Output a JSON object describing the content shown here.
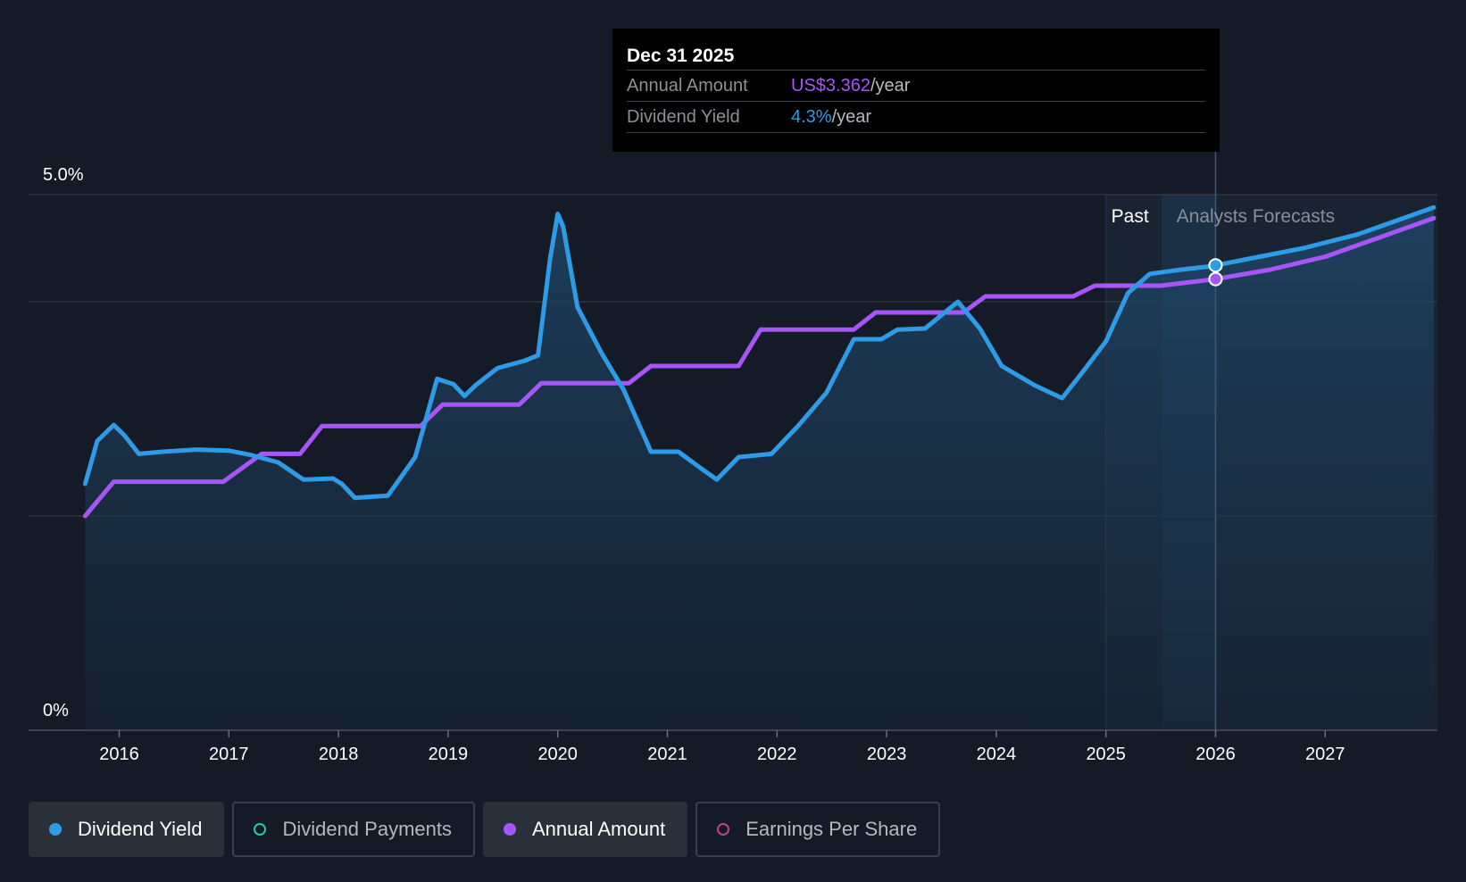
{
  "colors": {
    "yield": "#2e9be6",
    "annual": "#a855f7",
    "payments": "#26c6b0",
    "eps": "#c2447a",
    "background": "#151b26"
  },
  "tooltip": {
    "date": "Dec 31 2025",
    "rows": [
      {
        "label": "Annual Amount",
        "value": "US$3.362",
        "suffix": "/year"
      },
      {
        "label": "Dividend Yield",
        "value": "4.3%",
        "suffix": "/year"
      }
    ]
  },
  "legend": [
    {
      "label": "Dividend Yield",
      "active": true,
      "color": "#2e9be6"
    },
    {
      "label": "Dividend Payments",
      "active": false,
      "color": "#26c6b0"
    },
    {
      "label": "Annual Amount",
      "active": true,
      "color": "#a855f7"
    },
    {
      "label": "Earnings Per Share",
      "active": false,
      "color": "#c2447a"
    }
  ],
  "chart_data": {
    "type": "line",
    "ylim": [
      0,
      5.0
    ],
    "y_tick_labels": [
      "5.0%",
      "0%"
    ],
    "x_tick_labels": [
      "2016",
      "2017",
      "2018",
      "2019",
      "2020",
      "2021",
      "2022",
      "2023",
      "2024",
      "2025",
      "2026",
      "2027"
    ],
    "xlim": [
      2015.5,
      2028.0
    ],
    "grid": true,
    "region_labels": {
      "past": "Past",
      "forecast": "Analysts Forecasts"
    },
    "forecast_start": 2025.0,
    "highlight_x": 2026.0,
    "series": [
      {
        "name": "Dividend Yield",
        "area": true,
        "points": [
          [
            2015.69,
            2.3
          ],
          [
            2015.8,
            2.7
          ],
          [
            2015.95,
            2.85
          ],
          [
            2016.05,
            2.75
          ],
          [
            2016.18,
            2.58
          ],
          [
            2016.4,
            2.6
          ],
          [
            2016.7,
            2.62
          ],
          [
            2017.0,
            2.61
          ],
          [
            2017.2,
            2.57
          ],
          [
            2017.45,
            2.5
          ],
          [
            2017.68,
            2.34
          ],
          [
            2017.95,
            2.35
          ],
          [
            2018.03,
            2.3
          ],
          [
            2018.15,
            2.17
          ],
          [
            2018.45,
            2.19
          ],
          [
            2018.7,
            2.55
          ],
          [
            2018.9,
            3.28
          ],
          [
            2019.05,
            3.23
          ],
          [
            2019.15,
            3.12
          ],
          [
            2019.25,
            3.22
          ],
          [
            2019.45,
            3.38
          ],
          [
            2019.7,
            3.45
          ],
          [
            2019.82,
            3.5
          ],
          [
            2019.93,
            4.4
          ],
          [
            2020.0,
            4.82
          ],
          [
            2020.05,
            4.7
          ],
          [
            2020.18,
            3.95
          ],
          [
            2020.4,
            3.52
          ],
          [
            2020.6,
            3.18
          ],
          [
            2020.85,
            2.6
          ],
          [
            2021.1,
            2.6
          ],
          [
            2021.3,
            2.45
          ],
          [
            2021.45,
            2.34
          ],
          [
            2021.65,
            2.55
          ],
          [
            2021.95,
            2.58
          ],
          [
            2022.2,
            2.85
          ],
          [
            2022.45,
            3.15
          ],
          [
            2022.7,
            3.65
          ],
          [
            2022.95,
            3.65
          ],
          [
            2023.1,
            3.74
          ],
          [
            2023.35,
            3.75
          ],
          [
            2023.65,
            4.0
          ],
          [
            2023.85,
            3.75
          ],
          [
            2024.05,
            3.4
          ],
          [
            2024.35,
            3.22
          ],
          [
            2024.6,
            3.1
          ],
          [
            2024.8,
            3.36
          ],
          [
            2025.0,
            3.63
          ],
          [
            2025.2,
            4.08
          ],
          [
            2025.4,
            4.26
          ],
          [
            2025.69,
            4.3
          ],
          [
            2025.95,
            4.33
          ],
          [
            2026.3,
            4.4
          ],
          [
            2026.8,
            4.5
          ],
          [
            2027.3,
            4.63
          ],
          [
            2027.99,
            4.88
          ]
        ]
      },
      {
        "name": "Annual Amount",
        "area": false,
        "points": [
          [
            2015.69,
            2.0
          ],
          [
            2015.95,
            2.32
          ],
          [
            2016.95,
            2.32
          ],
          [
            2017.3,
            2.58
          ],
          [
            2017.65,
            2.58
          ],
          [
            2017.85,
            2.84
          ],
          [
            2018.75,
            2.84
          ],
          [
            2018.95,
            3.04
          ],
          [
            2019.65,
            3.04
          ],
          [
            2019.85,
            3.24
          ],
          [
            2020.65,
            3.24
          ],
          [
            2020.85,
            3.4
          ],
          [
            2021.65,
            3.4
          ],
          [
            2021.85,
            3.74
          ],
          [
            2022.7,
            3.74
          ],
          [
            2022.9,
            3.9
          ],
          [
            2023.7,
            3.9
          ],
          [
            2023.9,
            4.05
          ],
          [
            2024.7,
            4.05
          ],
          [
            2024.9,
            4.15
          ],
          [
            2025.5,
            4.15
          ],
          [
            2025.99,
            4.21
          ],
          [
            2026.5,
            4.3
          ],
          [
            2027.0,
            4.42
          ],
          [
            2027.99,
            4.78
          ]
        ]
      }
    ]
  }
}
